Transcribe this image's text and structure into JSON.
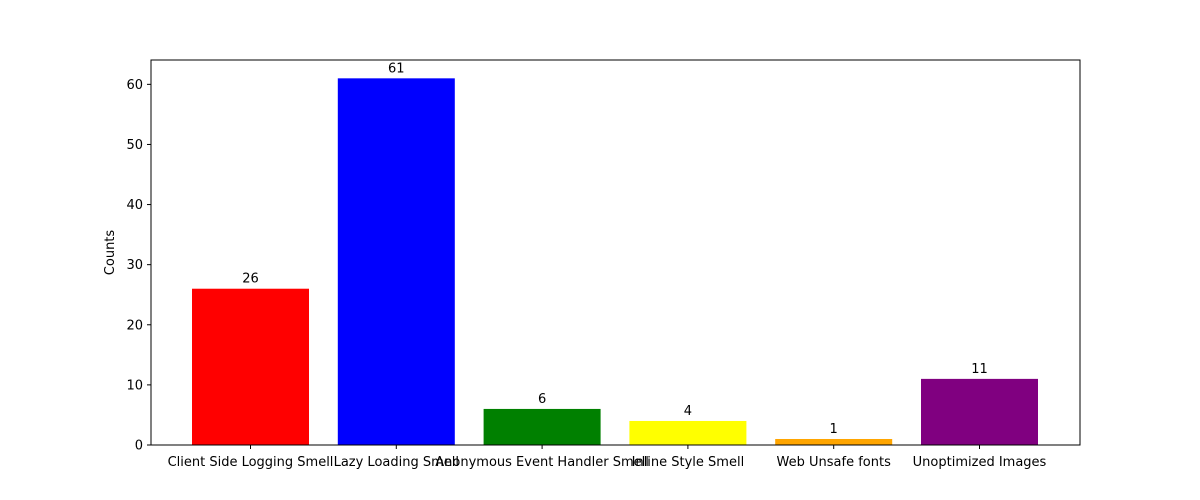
{
  "chart_data": {
    "type": "bar",
    "title": "",
    "xlabel": "",
    "ylabel": "Counts",
    "categories": [
      "Client Side Logging Smell",
      "Lazy Loading Smell",
      "Anonymous Event Handler Smell",
      "Inline Style Smell",
      "Web Unsafe fonts",
      "Unoptimized Images"
    ],
    "values": [
      26,
      61,
      6,
      4,
      1,
      11
    ],
    "colors": [
      "#ff0000",
      "#0000ff",
      "#008000",
      "#ffff00",
      "#ffa500",
      "#800080"
    ],
    "ylim": [
      0,
      64.05
    ],
    "yticks": [
      0,
      10,
      20,
      30,
      40,
      50,
      60
    ],
    "grid": false,
    "data_labels": true
  }
}
